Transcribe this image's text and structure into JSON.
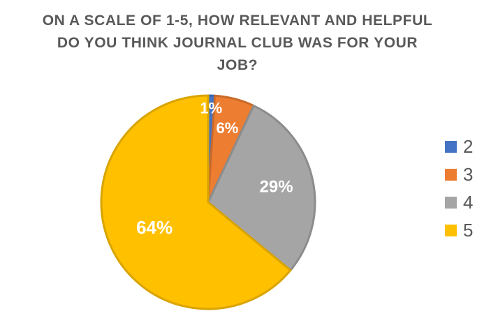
{
  "chart_data": {
    "type": "pie",
    "title_lines": [
      "ON A SCALE OF 1-5, HOW RELEVANT AND HELPFUL",
      "DO YOU THINK JOURNAL CLUB WAS FOR YOUR",
      "JOB?"
    ],
    "categories": [
      "2",
      "3",
      "4",
      "5"
    ],
    "values": [
      1,
      6,
      29,
      64
    ],
    "data_labels": [
      "1%",
      "6%",
      "29%",
      "64%"
    ],
    "colors": [
      "#4472C4",
      "#ED7D31",
      "#A5A5A5",
      "#FFC000"
    ],
    "legend_position": "right"
  }
}
